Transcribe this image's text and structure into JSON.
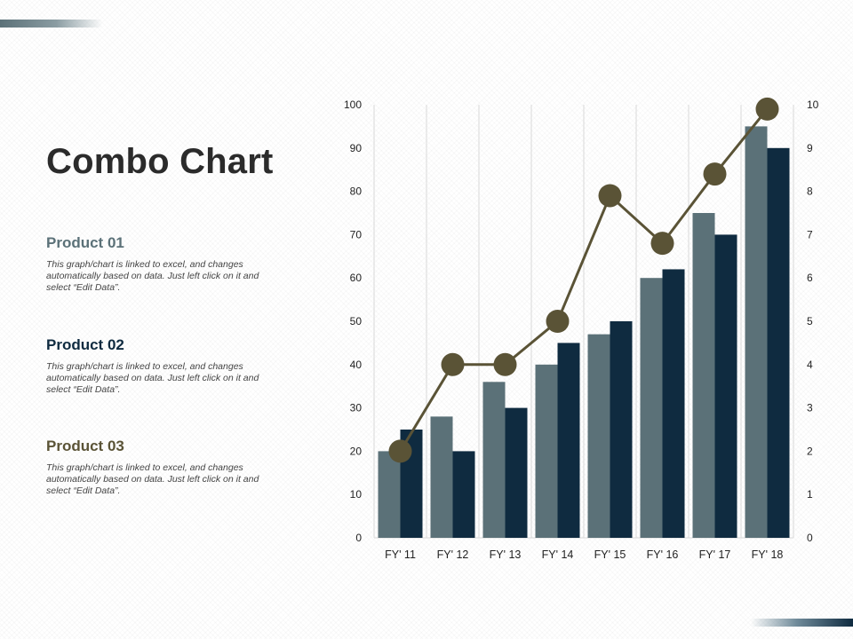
{
  "title": "Combo Chart",
  "products": [
    {
      "title": "Product 01",
      "color": "#5b7178",
      "description": "This graph/chart is linked to excel, and changes automatically based on data. Just left click on it and select “Edit Data”."
    },
    {
      "title": "Product 02",
      "color": "#0f2b40",
      "description": "This graph/chart is linked to excel, and changes automatically based on data. Just left click on it and select “Edit Data”."
    },
    {
      "title": "Product 03",
      "color": "#5a5336",
      "description": "This graph/chart is linked to excel, and changes automatically based on data. Just left click on it and select “Edit Data”."
    }
  ],
  "chart_data": {
    "type": "bar",
    "categories": [
      "FY' 11",
      "FY' 12",
      "FY' 13",
      "FY' 14",
      "FY' 15",
      "FY' 16",
      "FY' 17",
      "FY' 18"
    ],
    "series": [
      {
        "kind": "bar",
        "axis": "left",
        "color": "#5b7178",
        "values": [
          20,
          28,
          36,
          40,
          47,
          60,
          75,
          95
        ]
      },
      {
        "kind": "bar",
        "axis": "left",
        "color": "#0f2b40",
        "values": [
          25,
          20,
          30,
          45,
          50,
          62,
          70,
          90
        ]
      },
      {
        "kind": "line",
        "axis": "right",
        "color": "#5a5336",
        "values": [
          2,
          4,
          4,
          5,
          7.9,
          6.8,
          8.4,
          9.9
        ]
      }
    ],
    "y_left": {
      "min": 0,
      "max": 100,
      "ticks": [
        "0",
        "10",
        "20",
        "30",
        "40",
        "50",
        "60",
        "70",
        "80",
        "90",
        "100"
      ]
    },
    "y_right": {
      "min": 0,
      "max": 10,
      "ticks": [
        "0",
        "1",
        "2",
        "3",
        "4",
        "5",
        "6",
        "7",
        "8",
        "9",
        "10"
      ]
    },
    "grid": "vertical category separators",
    "legend": "none"
  }
}
